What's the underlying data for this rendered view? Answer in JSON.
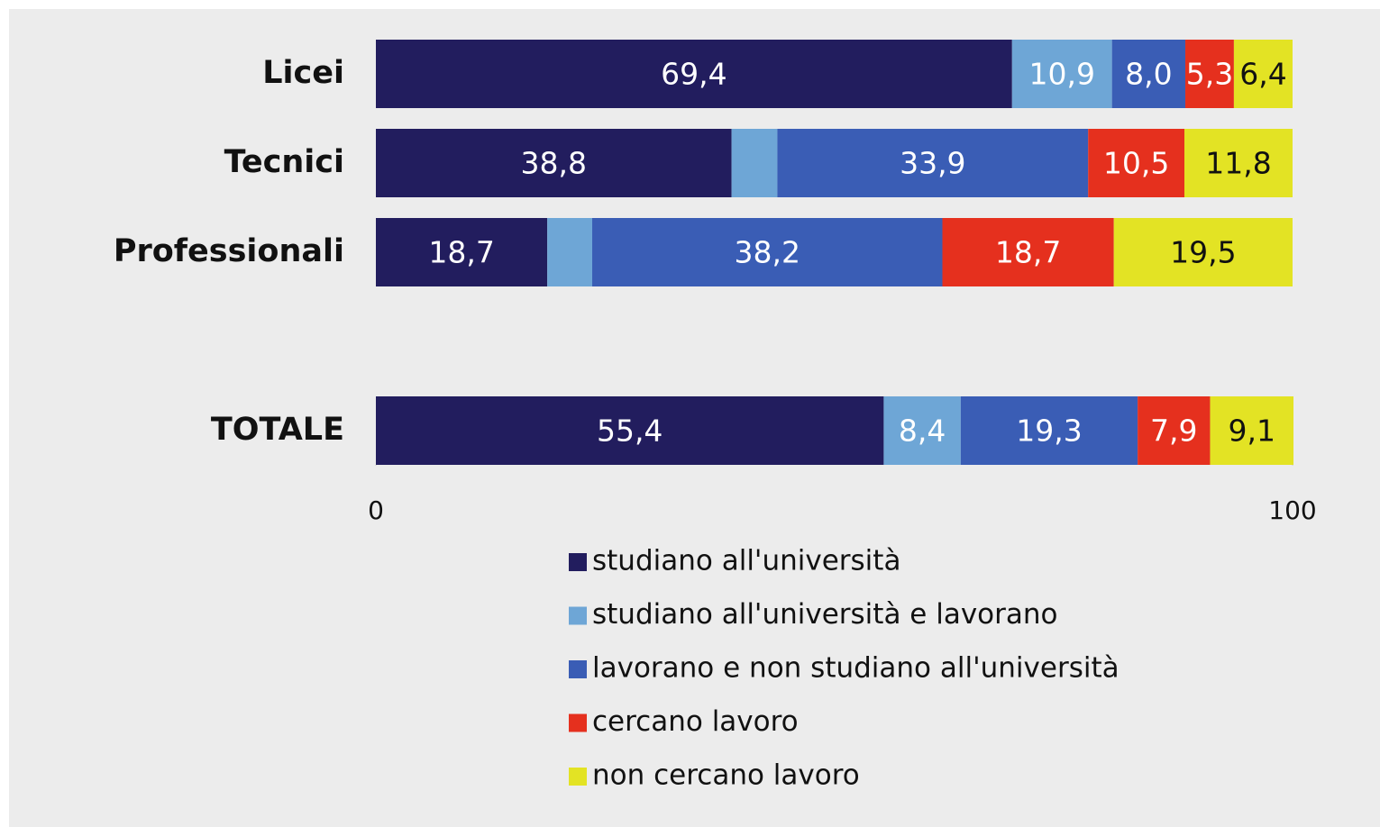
{
  "chart_data": {
    "type": "stacked_bar_horizontal",
    "categories": [
      "Licei",
      "Tecnici",
      "Professionali",
      null,
      "TOTALE"
    ],
    "series": [
      {
        "name": "studiano all'università",
        "color": "#221d5e",
        "values": [
          69.4,
          38.8,
          18.7,
          null,
          55.4
        ],
        "value_labels": [
          "69,4",
          "38,8",
          "18,7",
          null,
          "55,4"
        ]
      },
      {
        "name": "studiano all'università e lavorano",
        "color": "#6ea6d6",
        "values": [
          10.9,
          5.0,
          4.9,
          null,
          8.4
        ],
        "value_labels": [
          "10,9",
          null,
          null,
          null,
          "8,4"
        ]
      },
      {
        "name": "lavorano e non studiano all'università",
        "color": "#3a5db5",
        "values": [
          8.0,
          33.9,
          38.2,
          null,
          19.3
        ],
        "value_labels": [
          "8,0",
          "33,9",
          "38,2",
          null,
          "19,3"
        ]
      },
      {
        "name": "cercano lavoro",
        "color": "#e5301e",
        "values": [
          5.3,
          10.5,
          18.7,
          null,
          7.9
        ],
        "value_labels": [
          "5,3",
          "10,5",
          "18,7",
          null,
          "7,9"
        ]
      },
      {
        "name": "non cercano lavoro",
        "color": "#e3e324",
        "values": [
          6.4,
          11.8,
          19.5,
          null,
          9.1
        ],
        "value_labels": [
          "6,4",
          "11,8",
          "19,5",
          null,
          "9,1"
        ]
      }
    ],
    "xlim": [
      0,
      100
    ],
    "xticks": [
      0,
      100
    ]
  }
}
